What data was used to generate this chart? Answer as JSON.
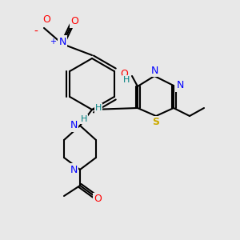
{
  "bg_color": "#e8e8e8",
  "atom_colors": {
    "C": "#000000",
    "N": "#0000ff",
    "O": "#ff0000",
    "S": "#ccaa00",
    "H": "#008080"
  },
  "bond_color": "#000000",
  "figsize": [
    3.0,
    3.0
  ],
  "dpi": 100
}
